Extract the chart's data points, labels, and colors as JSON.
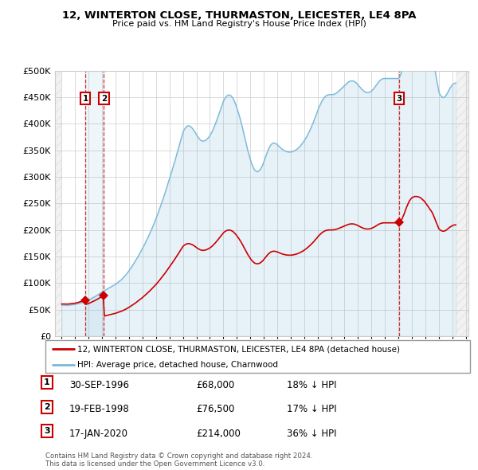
{
  "title": "12, WINTERTON CLOSE, THURMASTON, LEICESTER, LE4 8PA",
  "subtitle": "Price paid vs. HM Land Registry's House Price Index (HPI)",
  "hpi_color": "#7ab8d9",
  "price_color": "#cc0000",
  "grid_color": "#cccccc",
  "sale_dates": [
    1996.75,
    1998.13,
    2020.05
  ],
  "sale_prices": [
    68000,
    76500,
    214000
  ],
  "sale_labels": [
    "1",
    "2",
    "3"
  ],
  "legend_label_price": "12, WINTERTON CLOSE, THURMASTON, LEICESTER, LE4 8PA (detached house)",
  "legend_label_hpi": "HPI: Average price, detached house, Charnwood",
  "table_entries": [
    {
      "num": "1",
      "date": "30-SEP-1996",
      "price": "£68,000",
      "hpi": "18% ↓ HPI"
    },
    {
      "num": "2",
      "date": "19-FEB-1998",
      "price": "£76,500",
      "hpi": "17% ↓ HPI"
    },
    {
      "num": "3",
      "date": "17-JAN-2020",
      "price": "£214,000",
      "hpi": "36% ↓ HPI"
    }
  ],
  "footnote": "Contains HM Land Registry data © Crown copyright and database right 2024.\nThis data is licensed under the Open Government Licence v3.0.",
  "hpi_data": [
    [
      1995.0,
      58000
    ],
    [
      1995.08,
      58200
    ],
    [
      1995.17,
      58100
    ],
    [
      1995.25,
      57900
    ],
    [
      1995.33,
      57800
    ],
    [
      1995.42,
      57900
    ],
    [
      1995.5,
      58100
    ],
    [
      1995.58,
      58300
    ],
    [
      1995.67,
      58500
    ],
    [
      1995.75,
      58700
    ],
    [
      1995.83,
      59000
    ],
    [
      1995.92,
      59300
    ],
    [
      1996.0,
      59700
    ],
    [
      1996.08,
      60100
    ],
    [
      1996.17,
      60600
    ],
    [
      1996.25,
      61200
    ],
    [
      1996.33,
      61800
    ],
    [
      1996.42,
      62500
    ],
    [
      1996.5,
      63200
    ],
    [
      1996.58,
      63900
    ],
    [
      1996.67,
      64700
    ],
    [
      1996.75,
      65500
    ],
    [
      1996.83,
      66400
    ],
    [
      1996.92,
      67300
    ],
    [
      1997.0,
      68200
    ],
    [
      1997.08,
      69200
    ],
    [
      1997.17,
      70200
    ],
    [
      1997.25,
      71300
    ],
    [
      1997.33,
      72400
    ],
    [
      1997.42,
      73600
    ],
    [
      1997.5,
      74800
    ],
    [
      1997.58,
      76100
    ],
    [
      1997.67,
      77400
    ],
    [
      1997.75,
      78800
    ],
    [
      1997.83,
      80200
    ],
    [
      1997.92,
      81600
    ],
    [
      1998.0,
      83000
    ],
    [
      1998.08,
      84300
    ],
    [
      1998.17,
      85600
    ],
    [
      1998.25,
      86800
    ],
    [
      1998.33,
      88000
    ],
    [
      1998.42,
      89200
    ],
    [
      1998.5,
      90400
    ],
    [
      1998.58,
      91600
    ],
    [
      1998.67,
      92800
    ],
    [
      1998.75,
      94000
    ],
    [
      1998.83,
      95200
    ],
    [
      1998.92,
      96400
    ],
    [
      1999.0,
      97600
    ],
    [
      1999.08,
      99200
    ],
    [
      1999.17,
      100800
    ],
    [
      1999.25,
      102400
    ],
    [
      1999.33,
      104000
    ],
    [
      1999.42,
      106000
    ],
    [
      1999.5,
      108000
    ],
    [
      1999.58,
      110200
    ],
    [
      1999.67,
      112500
    ],
    [
      1999.75,
      115000
    ],
    [
      1999.83,
      117600
    ],
    [
      1999.92,
      120300
    ],
    [
      2000.0,
      123200
    ],
    [
      2000.08,
      126200
    ],
    [
      2000.17,
      129300
    ],
    [
      2000.25,
      132500
    ],
    [
      2000.33,
      135800
    ],
    [
      2000.42,
      139200
    ],
    [
      2000.5,
      142700
    ],
    [
      2000.58,
      146200
    ],
    [
      2000.67,
      149800
    ],
    [
      2000.75,
      153500
    ],
    [
      2000.83,
      157300
    ],
    [
      2000.92,
      161100
    ],
    [
      2001.0,
      165000
    ],
    [
      2001.08,
      169100
    ],
    [
      2001.17,
      173300
    ],
    [
      2001.25,
      177600
    ],
    [
      2001.33,
      182000
    ],
    [
      2001.42,
      186500
    ],
    [
      2001.5,
      191100
    ],
    [
      2001.58,
      195800
    ],
    [
      2001.67,
      200600
    ],
    [
      2001.75,
      205500
    ],
    [
      2001.83,
      210500
    ],
    [
      2001.92,
      215600
    ],
    [
      2002.0,
      220800
    ],
    [
      2002.08,
      226500
    ],
    [
      2002.17,
      232300
    ],
    [
      2002.25,
      238200
    ],
    [
      2002.33,
      244200
    ],
    [
      2002.42,
      250300
    ],
    [
      2002.5,
      256500
    ],
    [
      2002.58,
      262800
    ],
    [
      2002.67,
      269200
    ],
    [
      2002.75,
      275700
    ],
    [
      2002.83,
      282300
    ],
    [
      2002.92,
      289000
    ],
    [
      2003.0,
      295800
    ],
    [
      2003.08,
      302700
    ],
    [
      2003.17,
      309700
    ],
    [
      2003.25,
      316800
    ],
    [
      2003.33,
      323900
    ],
    [
      2003.42,
      331100
    ],
    [
      2003.5,
      338400
    ],
    [
      2003.58,
      345800
    ],
    [
      2003.67,
      353200
    ],
    [
      2003.75,
      360700
    ],
    [
      2003.83,
      368300
    ],
    [
      2003.92,
      375900
    ],
    [
      2004.0,
      383600
    ],
    [
      2004.08,
      388000
    ],
    [
      2004.17,
      391500
    ],
    [
      2004.25,
      394000
    ],
    [
      2004.33,
      395500
    ],
    [
      2004.42,
      396000
    ],
    [
      2004.5,
      395500
    ],
    [
      2004.58,
      394000
    ],
    [
      2004.67,
      392000
    ],
    [
      2004.75,
      389500
    ],
    [
      2004.83,
      386500
    ],
    [
      2004.92,
      383000
    ],
    [
      2005.0,
      379500
    ],
    [
      2005.08,
      376000
    ],
    [
      2005.17,
      373000
    ],
    [
      2005.25,
      370500
    ],
    [
      2005.33,
      368500
    ],
    [
      2005.42,
      367500
    ],
    [
      2005.5,
      367000
    ],
    [
      2005.58,
      367500
    ],
    [
      2005.67,
      368500
    ],
    [
      2005.75,
      370000
    ],
    [
      2005.83,
      372000
    ],
    [
      2005.92,
      374500
    ],
    [
      2006.0,
      377500
    ],
    [
      2006.08,
      381000
    ],
    [
      2006.17,
      385000
    ],
    [
      2006.25,
      389500
    ],
    [
      2006.33,
      394500
    ],
    [
      2006.42,
      400000
    ],
    [
      2006.5,
      405500
    ],
    [
      2006.58,
      411500
    ],
    [
      2006.67,
      417500
    ],
    [
      2006.75,
      423500
    ],
    [
      2006.83,
      429500
    ],
    [
      2006.92,
      435500
    ],
    [
      2007.0,
      441500
    ],
    [
      2007.08,
      446000
    ],
    [
      2007.17,
      449500
    ],
    [
      2007.25,
      452000
    ],
    [
      2007.33,
      453500
    ],
    [
      2007.42,
      454000
    ],
    [
      2007.5,
      453500
    ],
    [
      2007.58,
      452000
    ],
    [
      2007.67,
      449500
    ],
    [
      2007.75,
      446000
    ],
    [
      2007.83,
      441500
    ],
    [
      2007.92,
      436000
    ],
    [
      2008.0,
      430000
    ],
    [
      2008.08,
      423500
    ],
    [
      2008.17,
      416500
    ],
    [
      2008.25,
      409000
    ],
    [
      2008.33,
      401000
    ],
    [
      2008.42,
      392500
    ],
    [
      2008.5,
      383500
    ],
    [
      2008.58,
      374500
    ],
    [
      2008.67,
      365500
    ],
    [
      2008.75,
      356500
    ],
    [
      2008.83,
      348000
    ],
    [
      2008.92,
      340000
    ],
    [
      2009.0,
      332500
    ],
    [
      2009.08,
      326000
    ],
    [
      2009.17,
      320500
    ],
    [
      2009.25,
      316000
    ],
    [
      2009.33,
      312500
    ],
    [
      2009.42,
      310500
    ],
    [
      2009.5,
      309500
    ],
    [
      2009.58,
      310000
    ],
    [
      2009.67,
      311500
    ],
    [
      2009.75,
      314000
    ],
    [
      2009.83,
      317500
    ],
    [
      2009.92,
      322000
    ],
    [
      2010.0,
      327500
    ],
    [
      2010.08,
      333500
    ],
    [
      2010.17,
      339500
    ],
    [
      2010.25,
      345500
    ],
    [
      2010.33,
      351000
    ],
    [
      2010.42,
      355500
    ],
    [
      2010.5,
      359000
    ],
    [
      2010.58,
      361500
    ],
    [
      2010.67,
      363000
    ],
    [
      2010.75,
      363500
    ],
    [
      2010.83,
      363000
    ],
    [
      2010.92,
      362000
    ],
    [
      2011.0,
      360500
    ],
    [
      2011.08,
      358500
    ],
    [
      2011.17,
      356500
    ],
    [
      2011.25,
      354500
    ],
    [
      2011.33,
      352500
    ],
    [
      2011.42,
      351000
    ],
    [
      2011.5,
      349500
    ],
    [
      2011.58,
      348500
    ],
    [
      2011.67,
      347500
    ],
    [
      2011.75,
      347000
    ],
    [
      2011.83,
      346500
    ],
    [
      2011.92,
      346500
    ],
    [
      2012.0,
      346500
    ],
    [
      2012.08,
      347000
    ],
    [
      2012.17,
      347500
    ],
    [
      2012.25,
      348500
    ],
    [
      2012.33,
      349500
    ],
    [
      2012.42,
      351000
    ],
    [
      2012.5,
      352500
    ],
    [
      2012.58,
      354500
    ],
    [
      2012.67,
      356500
    ],
    [
      2012.75,
      359000
    ],
    [
      2012.83,
      361500
    ],
    [
      2012.92,
      364500
    ],
    [
      2013.0,
      367500
    ],
    [
      2013.08,
      371000
    ],
    [
      2013.17,
      374500
    ],
    [
      2013.25,
      378500
    ],
    [
      2013.33,
      382500
    ],
    [
      2013.42,
      387000
    ],
    [
      2013.5,
      391500
    ],
    [
      2013.58,
      396500
    ],
    [
      2013.67,
      401500
    ],
    [
      2013.75,
      407000
    ],
    [
      2013.83,
      412500
    ],
    [
      2013.92,
      418000
    ],
    [
      2014.0,
      424000
    ],
    [
      2014.08,
      429500
    ],
    [
      2014.17,
      434500
    ],
    [
      2014.25,
      439000
    ],
    [
      2014.33,
      443000
    ],
    [
      2014.42,
      446500
    ],
    [
      2014.5,
      449500
    ],
    [
      2014.58,
      451500
    ],
    [
      2014.67,
      453000
    ],
    [
      2014.75,
      454000
    ],
    [
      2014.83,
      454500
    ],
    [
      2014.92,
      454500
    ],
    [
      2015.0,
      454500
    ],
    [
      2015.08,
      454500
    ],
    [
      2015.17,
      455000
    ],
    [
      2015.25,
      455500
    ],
    [
      2015.33,
      456500
    ],
    [
      2015.42,
      458000
    ],
    [
      2015.5,
      459500
    ],
    [
      2015.58,
      461500
    ],
    [
      2015.67,
      463500
    ],
    [
      2015.75,
      465500
    ],
    [
      2015.83,
      467500
    ],
    [
      2015.92,
      469500
    ],
    [
      2016.0,
      471500
    ],
    [
      2016.08,
      473500
    ],
    [
      2016.17,
      475500
    ],
    [
      2016.25,
      477500
    ],
    [
      2016.33,
      479000
    ],
    [
      2016.42,
      480000
    ],
    [
      2016.5,
      480500
    ],
    [
      2016.58,
      480500
    ],
    [
      2016.67,
      480000
    ],
    [
      2016.75,
      479000
    ],
    [
      2016.83,
      477500
    ],
    [
      2016.92,
      475500
    ],
    [
      2017.0,
      473000
    ],
    [
      2017.08,
      470500
    ],
    [
      2017.17,
      468000
    ],
    [
      2017.25,
      465500
    ],
    [
      2017.33,
      463500
    ],
    [
      2017.42,
      461500
    ],
    [
      2017.5,
      460000
    ],
    [
      2017.58,
      459000
    ],
    [
      2017.67,
      458500
    ],
    [
      2017.75,
      458500
    ],
    [
      2017.83,
      459000
    ],
    [
      2017.92,
      460000
    ],
    [
      2018.0,
      461500
    ],
    [
      2018.08,
      463500
    ],
    [
      2018.17,
      466000
    ],
    [
      2018.25,
      468500
    ],
    [
      2018.33,
      471500
    ],
    [
      2018.42,
      474500
    ],
    [
      2018.5,
      477500
    ],
    [
      2018.58,
      480000
    ],
    [
      2018.67,
      482000
    ],
    [
      2018.75,
      483500
    ],
    [
      2018.83,
      484500
    ],
    [
      2018.92,
      485000
    ],
    [
      2019.0,
      485000
    ],
    [
      2019.08,
      485000
    ],
    [
      2019.17,
      485000
    ],
    [
      2019.25,
      485000
    ],
    [
      2019.33,
      485000
    ],
    [
      2019.42,
      485000
    ],
    [
      2019.5,
      485000
    ],
    [
      2019.58,
      485000
    ],
    [
      2019.67,
      485000
    ],
    [
      2019.75,
      485000
    ],
    [
      2019.83,
      485000
    ],
    [
      2019.92,
      485000
    ],
    [
      2020.0,
      485000
    ],
    [
      2020.08,
      488000
    ],
    [
      2020.17,
      493000
    ],
    [
      2020.25,
      500000
    ],
    [
      2020.33,
      510000
    ],
    [
      2020.42,
      522000
    ],
    [
      2020.5,
      535000
    ],
    [
      2020.58,
      548000
    ],
    [
      2020.67,
      560000
    ],
    [
      2020.75,
      571000
    ],
    [
      2020.83,
      580000
    ],
    [
      2020.92,
      587000
    ],
    [
      2021.0,
      592000
    ],
    [
      2021.08,
      595000
    ],
    [
      2021.17,
      597000
    ],
    [
      2021.25,
      598000
    ],
    [
      2021.33,
      598000
    ],
    [
      2021.42,
      597000
    ],
    [
      2021.5,
      596000
    ],
    [
      2021.58,
      594000
    ],
    [
      2021.67,
      591000
    ],
    [
      2021.75,
      587000
    ],
    [
      2021.83,
      583000
    ],
    [
      2021.92,
      578000
    ],
    [
      2022.0,
      572000
    ],
    [
      2022.08,
      565000
    ],
    [
      2022.17,
      558000
    ],
    [
      2022.25,
      551000
    ],
    [
      2022.33,
      544000
    ],
    [
      2022.42,
      537000
    ],
    [
      2022.5,
      530000
    ],
    [
      2022.58,
      520000
    ],
    [
      2022.67,
      508000
    ],
    [
      2022.75,
      496000
    ],
    [
      2022.83,
      484000
    ],
    [
      2022.92,
      472000
    ],
    [
      2023.0,
      460000
    ],
    [
      2023.08,
      455000
    ],
    [
      2023.17,
      452000
    ],
    [
      2023.25,
      450000
    ],
    [
      2023.33,
      449000
    ],
    [
      2023.42,
      450000
    ],
    [
      2023.5,
      452000
    ],
    [
      2023.58,
      455000
    ],
    [
      2023.67,
      459000
    ],
    [
      2023.75,
      463000
    ],
    [
      2023.83,
      467000
    ],
    [
      2023.92,
      470000
    ],
    [
      2024.0,
      473000
    ],
    [
      2024.08,
      475000
    ],
    [
      2024.17,
      476000
    ],
    [
      2024.25,
      476500
    ]
  ],
  "ylim": [
    0,
    500000
  ],
  "xlim": [
    1994.5,
    2025.2
  ],
  "yticks": [
    0,
    50000,
    100000,
    150000,
    200000,
    250000,
    300000,
    350000,
    400000,
    450000,
    500000
  ],
  "ytick_labels": [
    "£0",
    "£50K",
    "£100K",
    "£150K",
    "£200K",
    "£250K",
    "£300K",
    "£350K",
    "£400K",
    "£450K",
    "£500K"
  ]
}
